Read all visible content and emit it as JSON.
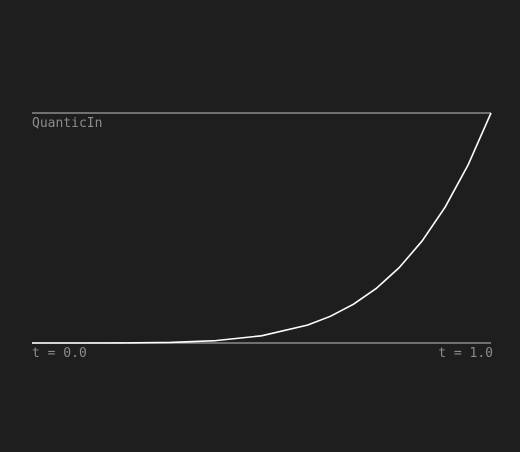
{
  "chart_data": {
    "type": "line",
    "title": "QuanticIn",
    "xlabel": "",
    "ylabel": "",
    "x_start_label": "t = 0.0",
    "x_end_label": "t = 1.0",
    "xlim": [
      0,
      1
    ],
    "ylim": [
      0,
      1
    ],
    "grid": false,
    "reference_lines": [
      0,
      1
    ],
    "series": [
      {
        "x": [
          0,
          0.1,
          0.2,
          0.3,
          0.4,
          0.5,
          0.6,
          0.65,
          0.7,
          0.75,
          0.8,
          0.85,
          0.9,
          0.95,
          1.0
        ],
        "values": [
          0,
          1e-05,
          0.00032,
          0.00243,
          0.01024,
          0.03125,
          0.07776,
          0.11603,
          0.16807,
          0.2373,
          0.32768,
          0.4437,
          0.59049,
          0.77378,
          1.0
        ]
      }
    ]
  },
  "colors": {
    "background": "#1e1e1e",
    "curve": "#ffffff",
    "reference_line": "#8c8c8c",
    "label_text": "#8c8c8c"
  }
}
